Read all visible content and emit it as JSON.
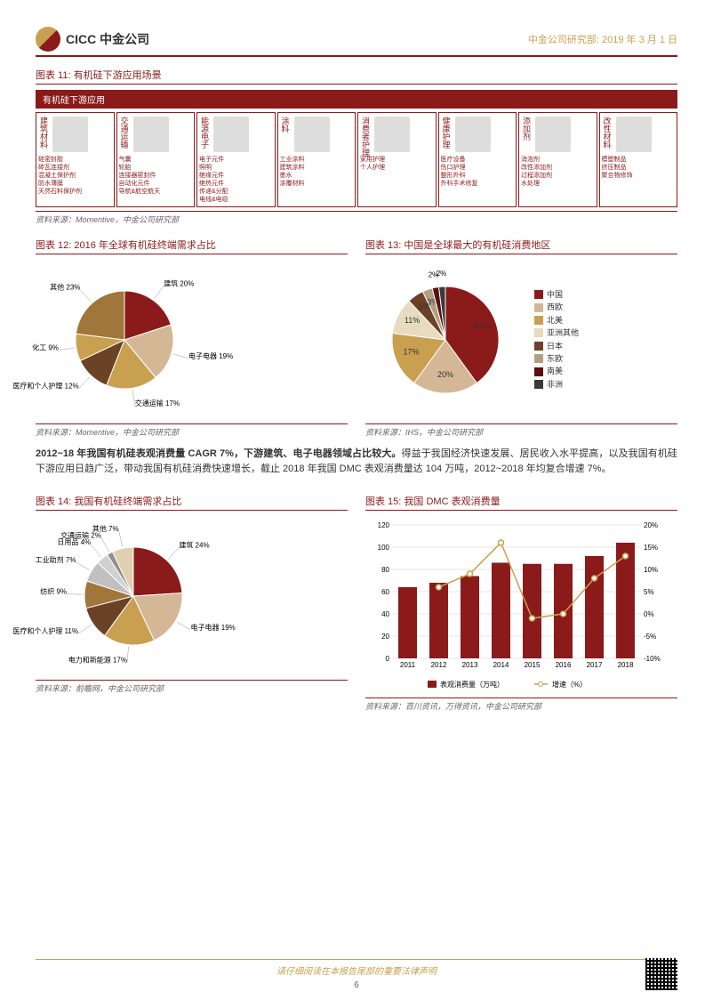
{
  "header": {
    "company": "CICC 中金公司",
    "dept": "中金公司研究部:",
    "date": "2019 年 3 月 1 日"
  },
  "chart11": {
    "title": "图表 11: 有机硅下游应用场景",
    "bar_label": "有机硅下游应用",
    "source": "资料来源：Momentive，中金公司研究部",
    "categories": [
      {
        "name": "建筑材料",
        "items": "硅密封胶\n砖瓦连接剂\n混凝土保护剂\n防水薄膜\n天然石料保护剂"
      },
      {
        "name": "交通运输",
        "items": "气囊\n轮胎\n连接器密封件\n自动化元件\n导航&航空航天"
      },
      {
        "name": "能源电子",
        "items": "电子元件\n照明\n绝缘元件\n绝热元件\n传递&分配\n电线&电缆"
      },
      {
        "name": "涂料",
        "items": "工业涂料\n建筑涂料\n墨水\n涂覆材料"
      },
      {
        "name": "消费者护理",
        "items": "家用护理\n个人护理"
      },
      {
        "name": "健康护理",
        "items": "医疗设备\n伤口护理\n整形外科\n外科手术修复"
      },
      {
        "name": "添加剂",
        "items": "消泡剂\n改性添加剂\n过程添加剂\n水处理"
      },
      {
        "name": "改性材料",
        "items": "模塑制品\n挤压制品\n聚合物修饰"
      }
    ]
  },
  "chart12": {
    "title": "图表 12: 2016 年全球有机硅终端需求占比",
    "source": "资料来源：Momentive，中金公司研究部",
    "type": "pie",
    "slices": [
      {
        "label": "建筑",
        "value": 20,
        "color": "#8b1a1a"
      },
      {
        "label": "电子电器",
        "value": 19,
        "color": "#d4b896"
      },
      {
        "label": "交通运输",
        "value": 17,
        "color": "#c9a050"
      },
      {
        "label": "医疗和个人护理",
        "value": 12,
        "color": "#6b4226"
      },
      {
        "label": "化工",
        "value": 9,
        "color": "#c9a050"
      },
      {
        "label": "其他",
        "value": 23,
        "color": "#a0763a"
      }
    ]
  },
  "chart13": {
    "title": "图表 13: 中国是全球最大的有机硅消费地区",
    "source": "资料来源：IHS，中金公司研究部",
    "type": "pie",
    "slices": [
      {
        "label": "中国",
        "value": 40,
        "color": "#8b1a1a"
      },
      {
        "label": "西欧",
        "value": 20,
        "color": "#d4b896"
      },
      {
        "label": "北美",
        "value": 17,
        "color": "#c9a050"
      },
      {
        "label": "亚洲其他",
        "value": 11,
        "color": "#e8dcc0"
      },
      {
        "label": "日本",
        "value": 5,
        "color": "#6b4226"
      },
      {
        "label": "东欧",
        "value": 3,
        "color": "#b0a080"
      },
      {
        "label": "南美",
        "value": 2,
        "color": "#5a1010"
      },
      {
        "label": "非洲",
        "value": 2,
        "color": "#3a3a3a"
      }
    ]
  },
  "body": {
    "text": "2012~18 年我国有机硅表观消费量 CAGR 7%，下游建筑、电子电器领域占比较大。得益于我国经济快速发展、居民收入水平提高，以及我国有机硅下游应用日趋广泛，带动我国有机硅消费快速增长，截止 2018 年我国 DMC 表观消费量达 104 万吨，2012~2018 年均复合增速 7%。",
    "bold_prefix": "2012~18 年我国有机硅表观消费量 CAGR 7%，下游建筑、电子电器领域占比较大。"
  },
  "chart14": {
    "title": "图表 14: 我国有机硅终端需求占比",
    "source": "资料来源：前瞻网，中金公司研究部",
    "type": "pie",
    "slices": [
      {
        "label": "建筑",
        "value": 24,
        "color": "#8b1a1a"
      },
      {
        "label": "电子电器",
        "value": 19,
        "color": "#d4b896"
      },
      {
        "label": "电力和新能源",
        "value": 17,
        "color": "#c9a050"
      },
      {
        "label": "医疗和个人护理",
        "value": 11,
        "color": "#6b4226"
      },
      {
        "label": "纺织",
        "value": 9,
        "color": "#a0763a"
      },
      {
        "label": "工业助剂",
        "value": 7,
        "color": "#c0c0c0"
      },
      {
        "label": "日用品",
        "value": 4,
        "color": "#d0d0d0"
      },
      {
        "label": "交通运输",
        "value": 2,
        "color": "#909090"
      },
      {
        "label": "其他",
        "value": 7,
        "color": "#e0d0b0"
      }
    ]
  },
  "chart15": {
    "title": "图表 15: 我国 DMC 表观消费量",
    "source": "资料来源：百川资讯，万得资讯，中金公司研究部",
    "type": "combo",
    "years": [
      "2011",
      "2012",
      "2013",
      "2014",
      "2015",
      "2016",
      "2017",
      "2018"
    ],
    "bars": {
      "label": "表观消费量（万吨）",
      "values": [
        64,
        68,
        74,
        86,
        85,
        85,
        92,
        104
      ],
      "color": "#8b1a1a"
    },
    "line": {
      "label": "增速（%）",
      "values": [
        null,
        6,
        9,
        16,
        -1,
        0,
        8,
        13
      ],
      "color": "#c9a050"
    },
    "yleft": {
      "min": 0,
      "max": 120,
      "step": 20
    },
    "yright": {
      "min": -10,
      "max": 20,
      "step": 5
    },
    "grid_color": "#ccc",
    "bg": "#fff"
  },
  "footer": {
    "disclaimer": "请仔细阅读在本报告尾部的重要法律声明",
    "page": "6"
  }
}
